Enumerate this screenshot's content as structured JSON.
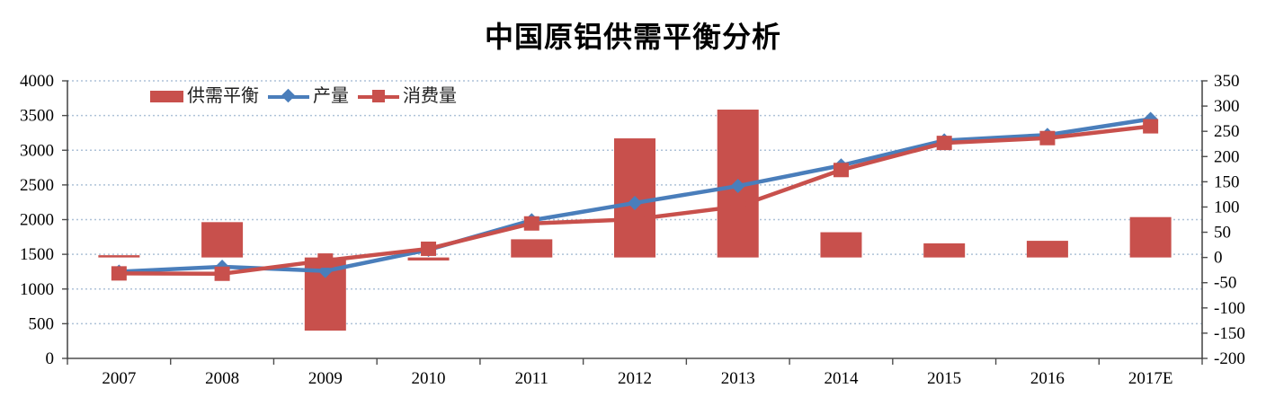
{
  "chart_data": {
    "type": "bar+line combo",
    "title": "中国原铝供需平衡分析",
    "categories": [
      "2007",
      "2008",
      "2009",
      "2010",
      "2011",
      "2012",
      "2013",
      "2014",
      "2015",
      "2016",
      "2017E"
    ],
    "bar_series": {
      "name": "供需平衡",
      "axis": "right",
      "values": [
        2,
        70,
        -145,
        -6,
        36,
        236,
        293,
        50,
        28,
        33,
        80
      ]
    },
    "line_series": [
      {
        "name": "产量",
        "axis": "left",
        "marker": "diamond",
        "values": [
          1250,
          1320,
          1260,
          1565,
          1990,
          2240,
          2485,
          2780,
          3140,
          3220,
          3450
        ]
      },
      {
        "name": "消费量",
        "axis": "left",
        "marker": "square",
        "values": [
          1225,
          1220,
          1410,
          1580,
          1945,
          2005,
          2190,
          2715,
          3105,
          3175,
          3345
        ]
      }
    ],
    "left_axis": {
      "min": 0,
      "max": 4000,
      "step": 500,
      "ticks": [
        "0",
        "500",
        "1000",
        "1500",
        "2000",
        "2500",
        "3000",
        "3500",
        "4000"
      ]
    },
    "right_axis": {
      "min": -200,
      "max": 350,
      "step": 50,
      "ticks": [
        "-200",
        "-150",
        "-100",
        "-50",
        "0",
        "50",
        "100",
        "150",
        "200",
        "250",
        "300",
        "350"
      ]
    },
    "legend_position": "top",
    "grid": "horizontal dotted",
    "colors": {
      "bar": "#c8504c",
      "production_line": "#4a7ebb",
      "consumption_line": "#c8504c",
      "gridline": "#aec2d8",
      "axis": "#4d4d4d",
      "tick_text": "#000000"
    }
  }
}
